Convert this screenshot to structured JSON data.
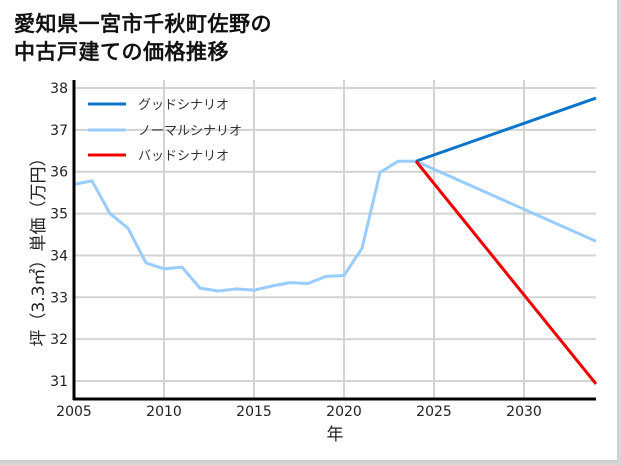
{
  "title_line1": "愛知県一宮市千秋町佐野の",
  "title_line2": "中古戸建ての価格推移",
  "legend": [
    {
      "label": "グッドシナリオ",
      "color": "#0a74c9"
    },
    {
      "label": "ノーマルシナリオ",
      "color": "#99ccff"
    },
    {
      "label": "バッドシナリオ",
      "color": "#f00000"
    }
  ],
  "chart_data": {
    "type": "line",
    "title": "愛知県一宮市千秋町佐野の中古戸建ての価格推移",
    "xlabel": "年",
    "ylabel": "坪（3.3㎡）単価（万円）",
    "xlim": [
      2005,
      2034
    ],
    "ylim": [
      30.6,
      38.1
    ],
    "xticks": [
      2005,
      2010,
      2015,
      2020,
      2025,
      2030
    ],
    "yticks": [
      31,
      32,
      33,
      34,
      35,
      36,
      37,
      38
    ],
    "grid": true,
    "legend_position": "upper left",
    "series": [
      {
        "name": "ノーマルシナリオ",
        "color": "#99ccff",
        "x": [
          2005,
          2006,
          2007,
          2008,
          2009,
          2010,
          2011,
          2012,
          2013,
          2014,
          2015,
          2016,
          2017,
          2018,
          2019,
          2020,
          2021,
          2022,
          2023,
          2024,
          2034
        ],
        "values": [
          35.7,
          35.78,
          35.0,
          34.65,
          33.82,
          33.68,
          33.72,
          33.22,
          33.15,
          33.2,
          33.17,
          33.27,
          33.35,
          33.33,
          33.5,
          33.52,
          34.17,
          35.98,
          36.25,
          36.25,
          34.34
        ]
      },
      {
        "name": "グッドシナリオ",
        "color": "#0a74c9",
        "x": [
          2024,
          2034
        ],
        "values": [
          36.25,
          37.76
        ]
      },
      {
        "name": "バッドシナリオ",
        "color": "#f00000",
        "x": [
          2024,
          2034
        ],
        "values": [
          36.25,
          30.93
        ]
      }
    ]
  }
}
